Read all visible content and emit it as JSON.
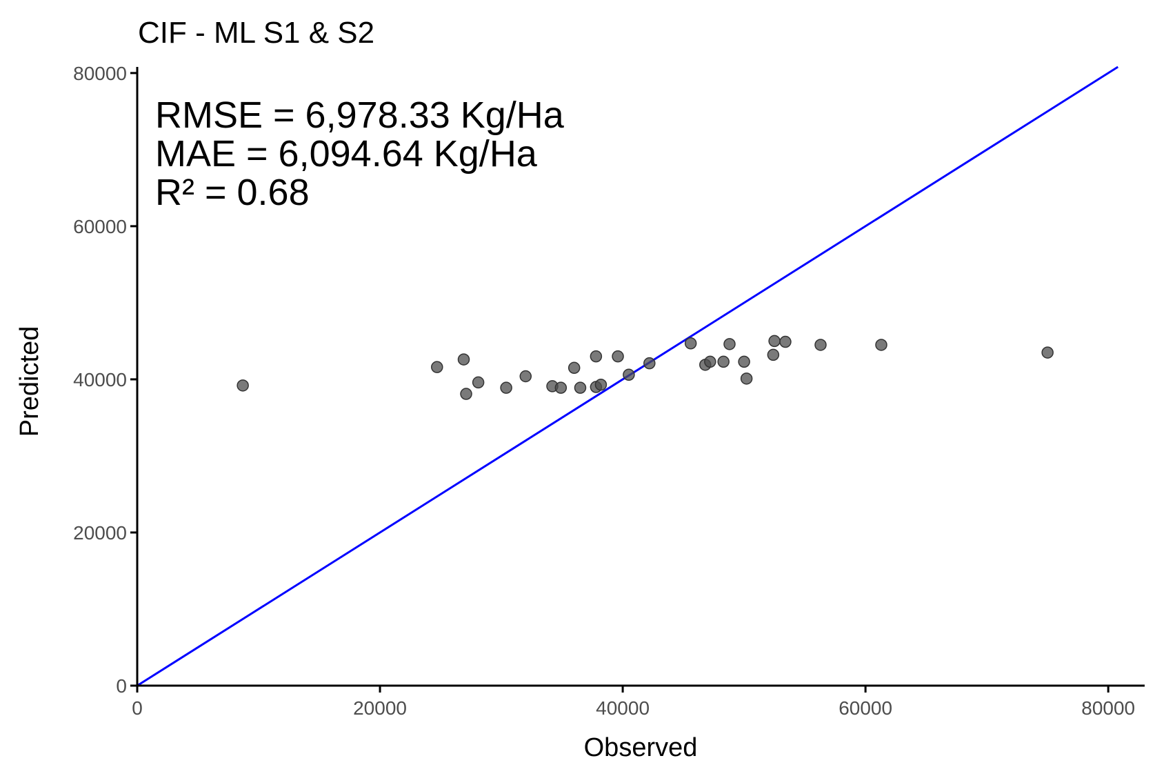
{
  "chart_data": {
    "type": "scatter",
    "title": "CIF - ML S1 & S2",
    "xlabel": "Observed",
    "ylabel": "Predicted",
    "xlim": [
      0,
      83000
    ],
    "ylim": [
      0,
      80800
    ],
    "xticks": [
      0,
      20000,
      40000,
      60000,
      80000
    ],
    "yticks": [
      0,
      20000,
      40000,
      60000,
      80000
    ],
    "xtick_labels": [
      "0",
      "20000",
      "40000",
      "60000",
      "80000"
    ],
    "ytick_labels": [
      "0",
      "20000",
      "40000",
      "60000",
      "80000"
    ],
    "grid": false,
    "annotations": [
      "RMSE = 6,978.33 Kg/Ha",
      "MAE = 6,094.64 Kg/Ha",
      "R² = 0.68"
    ],
    "reference_line": {
      "name": "1:1 line",
      "slope": 1,
      "intercept": 0,
      "color": "#0000ff"
    },
    "point_color": "#4d4d4d",
    "points": [
      {
        "x": 8700,
        "y": 39200
      },
      {
        "x": 24700,
        "y": 41600
      },
      {
        "x": 26900,
        "y": 42600
      },
      {
        "x": 27100,
        "y": 38100
      },
      {
        "x": 28100,
        "y": 39600
      },
      {
        "x": 30400,
        "y": 38900
      },
      {
        "x": 32000,
        "y": 40400
      },
      {
        "x": 34200,
        "y": 39100
      },
      {
        "x": 34900,
        "y": 38900
      },
      {
        "x": 36000,
        "y": 41500
      },
      {
        "x": 36500,
        "y": 38900
      },
      {
        "x": 37800,
        "y": 43000
      },
      {
        "x": 37800,
        "y": 39000
      },
      {
        "x": 38200,
        "y": 39300
      },
      {
        "x": 39600,
        "y": 43000
      },
      {
        "x": 40500,
        "y": 40600
      },
      {
        "x": 42200,
        "y": 42100
      },
      {
        "x": 45600,
        "y": 44700
      },
      {
        "x": 46800,
        "y": 41900
      },
      {
        "x": 47200,
        "y": 42300
      },
      {
        "x": 48300,
        "y": 42300
      },
      {
        "x": 48800,
        "y": 44600
      },
      {
        "x": 50000,
        "y": 42300
      },
      {
        "x": 50200,
        "y": 40100
      },
      {
        "x": 52400,
        "y": 43200
      },
      {
        "x": 52500,
        "y": 45000
      },
      {
        "x": 53400,
        "y": 44900
      },
      {
        "x": 56300,
        "y": 44500
      },
      {
        "x": 61300,
        "y": 44500
      },
      {
        "x": 75000,
        "y": 43500
      }
    ]
  }
}
